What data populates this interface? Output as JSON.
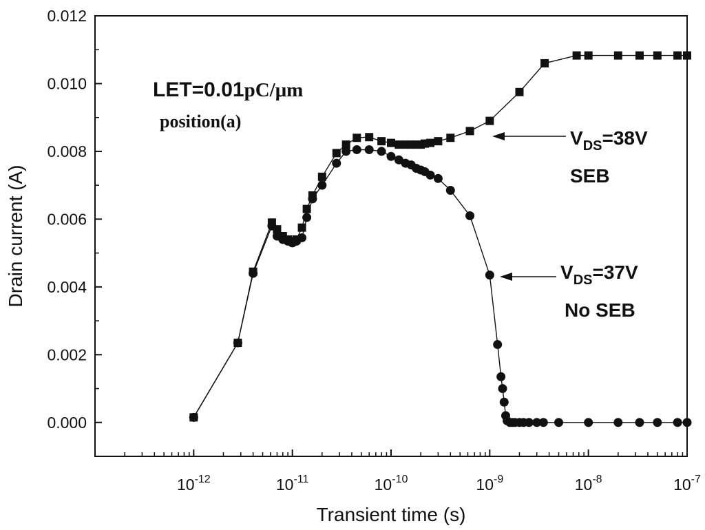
{
  "chart_data": {
    "type": "scatter",
    "xlabel": "Transient time (s)",
    "ylabel": "Drain current (A)",
    "x_scale": "log",
    "xlim": [
      1e-13,
      1e-07
    ],
    "ylim": [
      -0.001,
      0.012
    ],
    "x_tick_labels": [
      {
        "base": "10",
        "exp": "-12",
        "value": 1e-12
      },
      {
        "base": "10",
        "exp": "-11",
        "value": 1e-11
      },
      {
        "base": "10",
        "exp": "-10",
        "value": 1e-10
      },
      {
        "base": "10",
        "exp": "-9",
        "value": 1e-09
      },
      {
        "base": "10",
        "exp": "-8",
        "value": 1e-08
      },
      {
        "base": "10",
        "exp": "-7",
        "value": 1e-07
      }
    ],
    "y_tick_labels": [
      "0.000",
      "0.002",
      "0.004",
      "0.006",
      "0.008",
      "0.010",
      "0.012"
    ],
    "y_ticks": [
      0,
      0.002,
      0.004,
      0.006,
      0.008,
      0.01,
      0.012
    ],
    "grid": false,
    "annotations": {
      "let_prefix": "LET=0.01",
      "let_unit": "pC/μm",
      "position": "position(a)",
      "vds38_main": "V",
      "vds38_sub": "DS",
      "vds38_rest": "=38V",
      "vds38_desc": "SEB",
      "vds37_main": "V",
      "vds37_sub": "DS",
      "vds37_rest": "=37V",
      "vds37_desc": "No SEB"
    },
    "series": [
      {
        "marker": "square",
        "x": [
          1e-12,
          2.8e-12,
          4e-12,
          6.2e-12,
          7e-12,
          8e-12,
          9e-12,
          1e-11,
          1.1e-11,
          1.25e-11,
          1.4e-11,
          1.6e-11,
          2e-11,
          2.8e-11,
          3.5e-11,
          4.5e-11,
          6e-11,
          8e-11,
          1e-10,
          1.2e-10,
          1.4e-10,
          1.6e-10,
          1.8e-10,
          2e-10,
          2.2e-10,
          2.5e-10,
          3e-10,
          4e-10,
          6.3e-10,
          1e-09,
          2e-09,
          3.6e-09,
          7.6e-09,
          1e-08,
          2e-08,
          3.3e-08,
          5e-08,
          8e-08,
          1e-07
        ],
        "y": [
          0.00015,
          0.00235,
          0.00445,
          0.0059,
          0.0057,
          0.0055,
          0.0054,
          0.00535,
          0.0054,
          0.00575,
          0.0063,
          0.0067,
          0.00725,
          0.00795,
          0.0082,
          0.0084,
          0.00842,
          0.0083,
          0.00825,
          0.0082,
          0.0082,
          0.0082,
          0.0082,
          0.0082,
          0.00823,
          0.00825,
          0.0083,
          0.0084,
          0.0086,
          0.0089,
          0.00975,
          0.0106,
          0.01083,
          0.01083,
          0.01083,
          0.01083,
          0.01083,
          0.01083,
          0.01083
        ]
      },
      {
        "marker": "circle",
        "x": [
          1e-12,
          2.8e-12,
          4e-12,
          6.2e-12,
          7e-12,
          8e-12,
          9e-12,
          1e-11,
          1.1e-11,
          1.25e-11,
          1.4e-11,
          1.6e-11,
          2e-11,
          2.8e-11,
          3.5e-11,
          4.5e-11,
          6e-11,
          8e-11,
          1e-10,
          1.2e-10,
          1.4e-10,
          1.6e-10,
          1.8e-10,
          2e-10,
          2.2e-10,
          2.5e-10,
          3e-10,
          4e-10,
          6.3e-10,
          1e-09,
          1.2e-09,
          1.3e-09,
          1.35e-09,
          1.4e-09,
          1.45e-09,
          1.5e-09,
          1.6e-09,
          1.7e-09,
          1.8e-09,
          2e-09,
          2.2e-09,
          2.5e-09,
          3e-09,
          3.5e-09,
          5e-09,
          1e-08,
          2e-08,
          3.3e-08,
          5e-08,
          8e-08,
          1e-07
        ],
        "y": [
          0.00015,
          0.00235,
          0.0044,
          0.0058,
          0.0055,
          0.0054,
          0.00535,
          0.0053,
          0.00535,
          0.00545,
          0.00605,
          0.0066,
          0.007,
          0.00765,
          0.008,
          0.00805,
          0.00805,
          0.008,
          0.00785,
          0.00775,
          0.00765,
          0.0076,
          0.0075,
          0.00745,
          0.0074,
          0.0073,
          0.0072,
          0.00685,
          0.0061,
          0.00435,
          0.0023,
          0.00135,
          0.001,
          0.0006,
          0.0002,
          5e-05,
          0.0,
          0.0,
          0.0,
          0.0,
          0.0,
          0.0,
          0.0,
          0.0,
          0.0,
          0.0,
          0.0,
          0.0,
          0.0,
          0.0,
          0.0
        ]
      }
    ]
  }
}
